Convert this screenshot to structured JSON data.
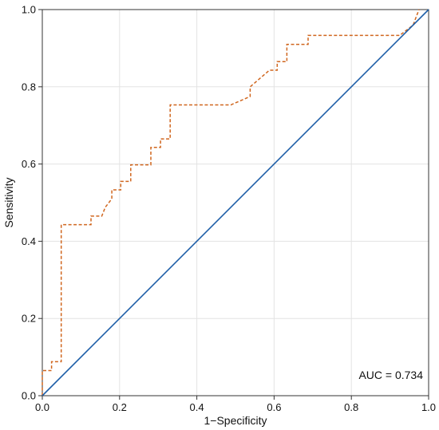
{
  "chart_data": {
    "type": "line",
    "title": "",
    "xlabel": "1−Specificity",
    "ylabel": "Sensitivity",
    "xlim": [
      0,
      1
    ],
    "ylim": [
      0,
      1
    ],
    "xticks": [
      "0.0",
      "0.2",
      "0.4",
      "0.6",
      "0.8",
      "1.0"
    ],
    "yticks": [
      "0.0",
      "0.2",
      "0.4",
      "0.6",
      "0.8",
      "1.0"
    ],
    "grid": true,
    "annotation": "AUC = 0.734",
    "colors": {
      "roc": "#d0661e",
      "reference": "#1f5fa8",
      "grid": "#e3e3e3"
    },
    "series": [
      {
        "style": "dashed",
        "x": [
          0,
          0,
          0.024,
          0.024,
          0.049,
          0.049,
          0.126,
          0.126,
          0.154,
          0.163,
          0.18,
          0.18,
          0.203,
          0.203,
          0.229,
          0.229,
          0.281,
          0.281,
          0.306,
          0.306,
          0.331,
          0.331,
          0.488,
          0.538,
          0.538,
          0.588,
          0.608,
          0.608,
          0.633,
          0.633,
          0.688,
          0.688,
          0.925,
          0.96,
          0.975
        ],
        "y": [
          0,
          0.065,
          0.065,
          0.088,
          0.088,
          0.443,
          0.443,
          0.465,
          0.465,
          0.488,
          0.51,
          0.533,
          0.533,
          0.555,
          0.555,
          0.598,
          0.598,
          0.643,
          0.643,
          0.665,
          0.665,
          0.753,
          0.753,
          0.775,
          0.8,
          0.843,
          0.843,
          0.865,
          0.865,
          0.91,
          0.91,
          0.933,
          0.933,
          0.96,
          1.0
        ]
      },
      {
        "style": "solid",
        "x": [
          0,
          1
        ],
        "y": [
          0,
          1
        ]
      }
    ]
  }
}
